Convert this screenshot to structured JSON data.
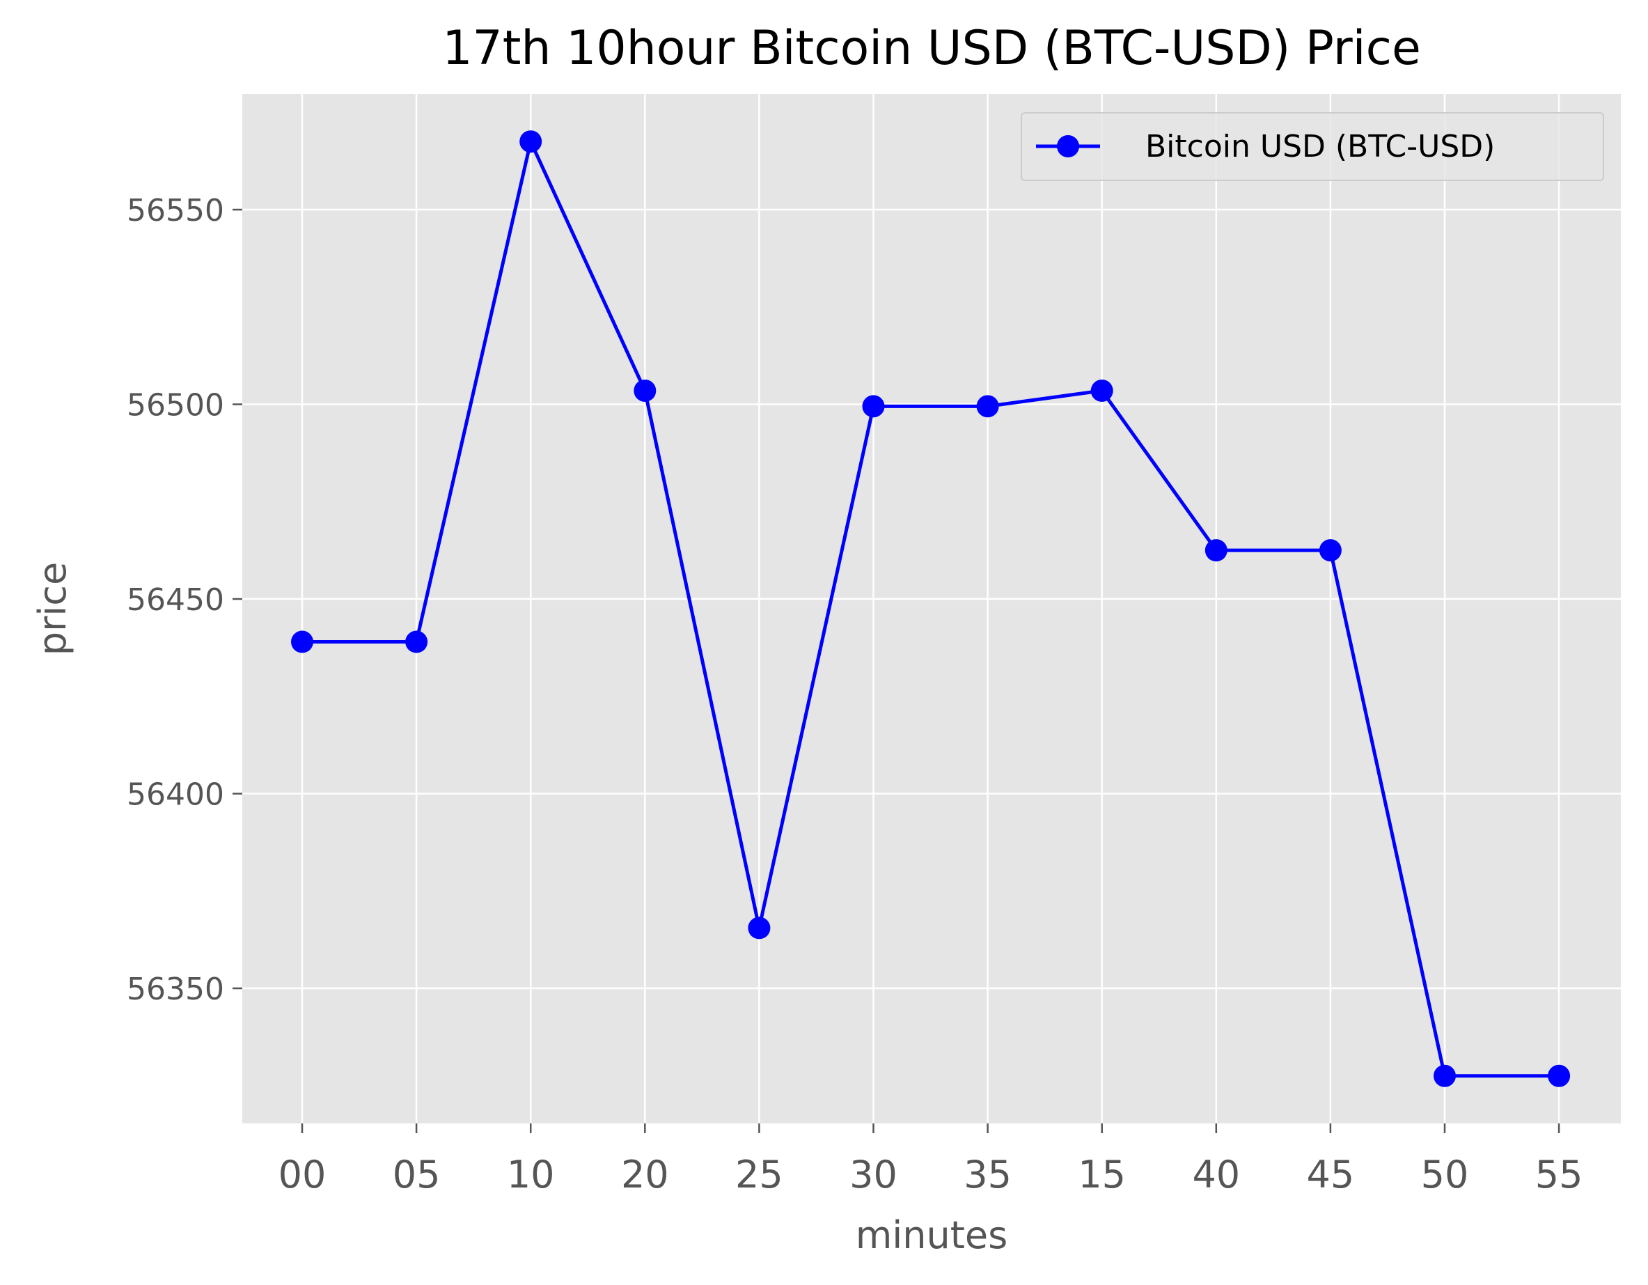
{
  "chart_data": {
    "type": "line",
    "title": "17th 10hour Bitcoin USD (BTC-USD) Price",
    "xlabel": "minutes",
    "ylabel": "price",
    "categories": [
      "00",
      "05",
      "10",
      "20",
      "25",
      "30",
      "35",
      "15",
      "40",
      "45",
      "50",
      "55"
    ],
    "series": [
      {
        "name": "Bitcoin USD (BTC-USD)",
        "values": [
          56439.0,
          56439.0,
          56567.5,
          56503.5,
          56365.5,
          56499.5,
          56499.5,
          56503.5,
          56462.5,
          56462.5,
          56327.5,
          56327.5
        ],
        "color": "#0000ff",
        "marker": "circle"
      }
    ],
    "yticks": [
      56350,
      56400,
      56450,
      56500,
      56550
    ],
    "ylim": [
      56315.3,
      56579.7
    ],
    "grid": true,
    "legend_position": "top-right",
    "colors": {
      "plot_background": "#e5e5e5",
      "grid": "#ffffff",
      "tick_text": "#555555"
    }
  }
}
